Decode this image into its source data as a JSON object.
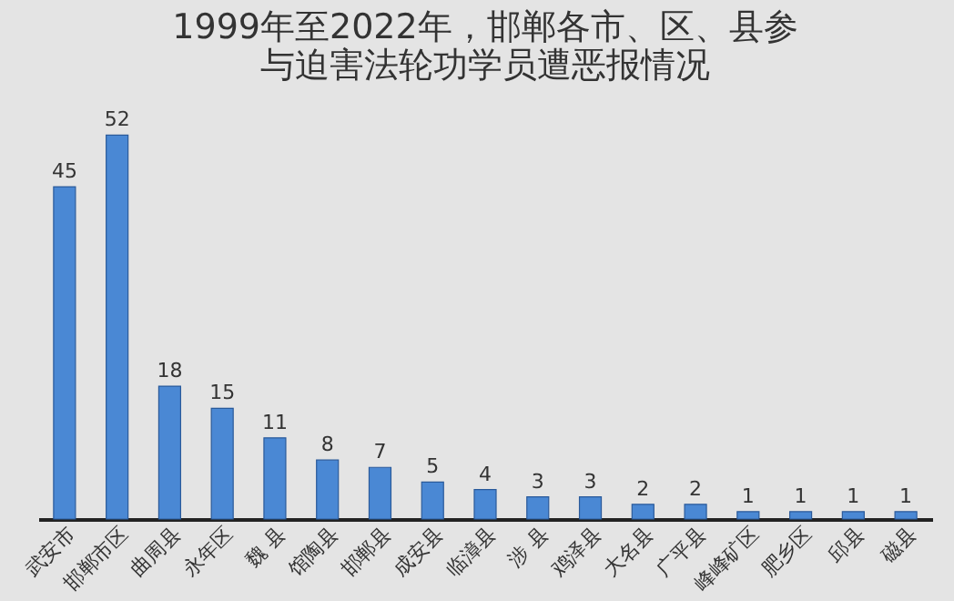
{
  "chart_data": {
    "type": "bar",
    "title": "1999年至2022年，邯郸各市、区、县参与迫害法轮功学员遭恶报情况",
    "categories": [
      "武安市",
      "邯郸市区",
      "曲周县",
      "永年区",
      "魏 县",
      "馆陶县",
      "邯郸县",
      "成安县",
      "临漳县",
      "涉 县",
      "鸡泽县",
      "大名县",
      "广平县",
      "峰峰矿区",
      "肥乡区",
      "邱县",
      "磁县"
    ],
    "values": [
      45,
      52,
      18,
      15,
      11,
      8,
      7,
      5,
      4,
      3,
      3,
      2,
      2,
      1,
      1,
      1,
      1
    ],
    "color": "#4a88d4",
    "data_labels": true,
    "grid": false
  }
}
